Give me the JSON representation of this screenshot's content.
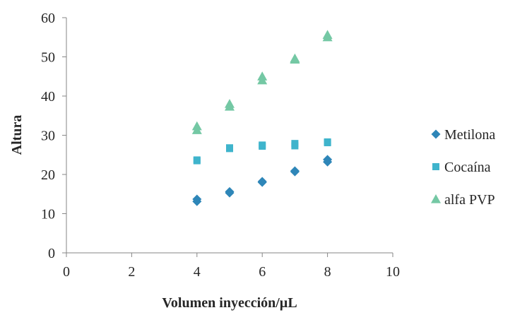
{
  "chart_data": {
    "type": "scatter",
    "title": "",
    "xlabel": "Volumen inyección/µL",
    "ylabel": "Altura",
    "xlim": [
      0,
      10
    ],
    "ylim": [
      0,
      60
    ],
    "xticks": [
      0,
      2,
      4,
      6,
      8,
      10
    ],
    "yticks": [
      0,
      10,
      20,
      30,
      40,
      50,
      60
    ],
    "grid": false,
    "legend_position": "right",
    "series": [
      {
        "name": "Metilona",
        "marker": "diamond",
        "color": "#2E86B8",
        "points": [
          {
            "x": 4,
            "y": 13.7
          },
          {
            "x": 4,
            "y": 13.1
          },
          {
            "x": 5,
            "y": 15.6
          },
          {
            "x": 5,
            "y": 15.3
          },
          {
            "x": 6,
            "y": 18.2
          },
          {
            "x": 6,
            "y": 18.0
          },
          {
            "x": 7,
            "y": 20.9
          },
          {
            "x": 7,
            "y": 20.7
          },
          {
            "x": 8,
            "y": 23.8
          },
          {
            "x": 8,
            "y": 23.2
          }
        ]
      },
      {
        "name": "Cocaína",
        "marker": "square",
        "color": "#3FB4CC",
        "points": [
          {
            "x": 4,
            "y": 23.7
          },
          {
            "x": 4,
            "y": 23.5
          },
          {
            "x": 5,
            "y": 26.8
          },
          {
            "x": 5,
            "y": 26.6
          },
          {
            "x": 6,
            "y": 27.5
          },
          {
            "x": 6,
            "y": 27.2
          },
          {
            "x": 7,
            "y": 27.9
          },
          {
            "x": 7,
            "y": 27.3
          },
          {
            "x": 8,
            "y": 28.3
          },
          {
            "x": 8,
            "y": 28.1
          }
        ]
      },
      {
        "name": "alfa PVP",
        "marker": "triangle",
        "color": "#74C8A4",
        "points": [
          {
            "x": 4,
            "y": 32.3
          },
          {
            "x": 4,
            "y": 31.3
          },
          {
            "x": 5,
            "y": 38.0
          },
          {
            "x": 5,
            "y": 37.3
          },
          {
            "x": 6,
            "y": 45.0
          },
          {
            "x": 6,
            "y": 44.0
          },
          {
            "x": 7,
            "y": 49.6
          },
          {
            "x": 7,
            "y": 49.3
          },
          {
            "x": 8,
            "y": 55.6
          },
          {
            "x": 8,
            "y": 55.0
          }
        ]
      }
    ]
  }
}
